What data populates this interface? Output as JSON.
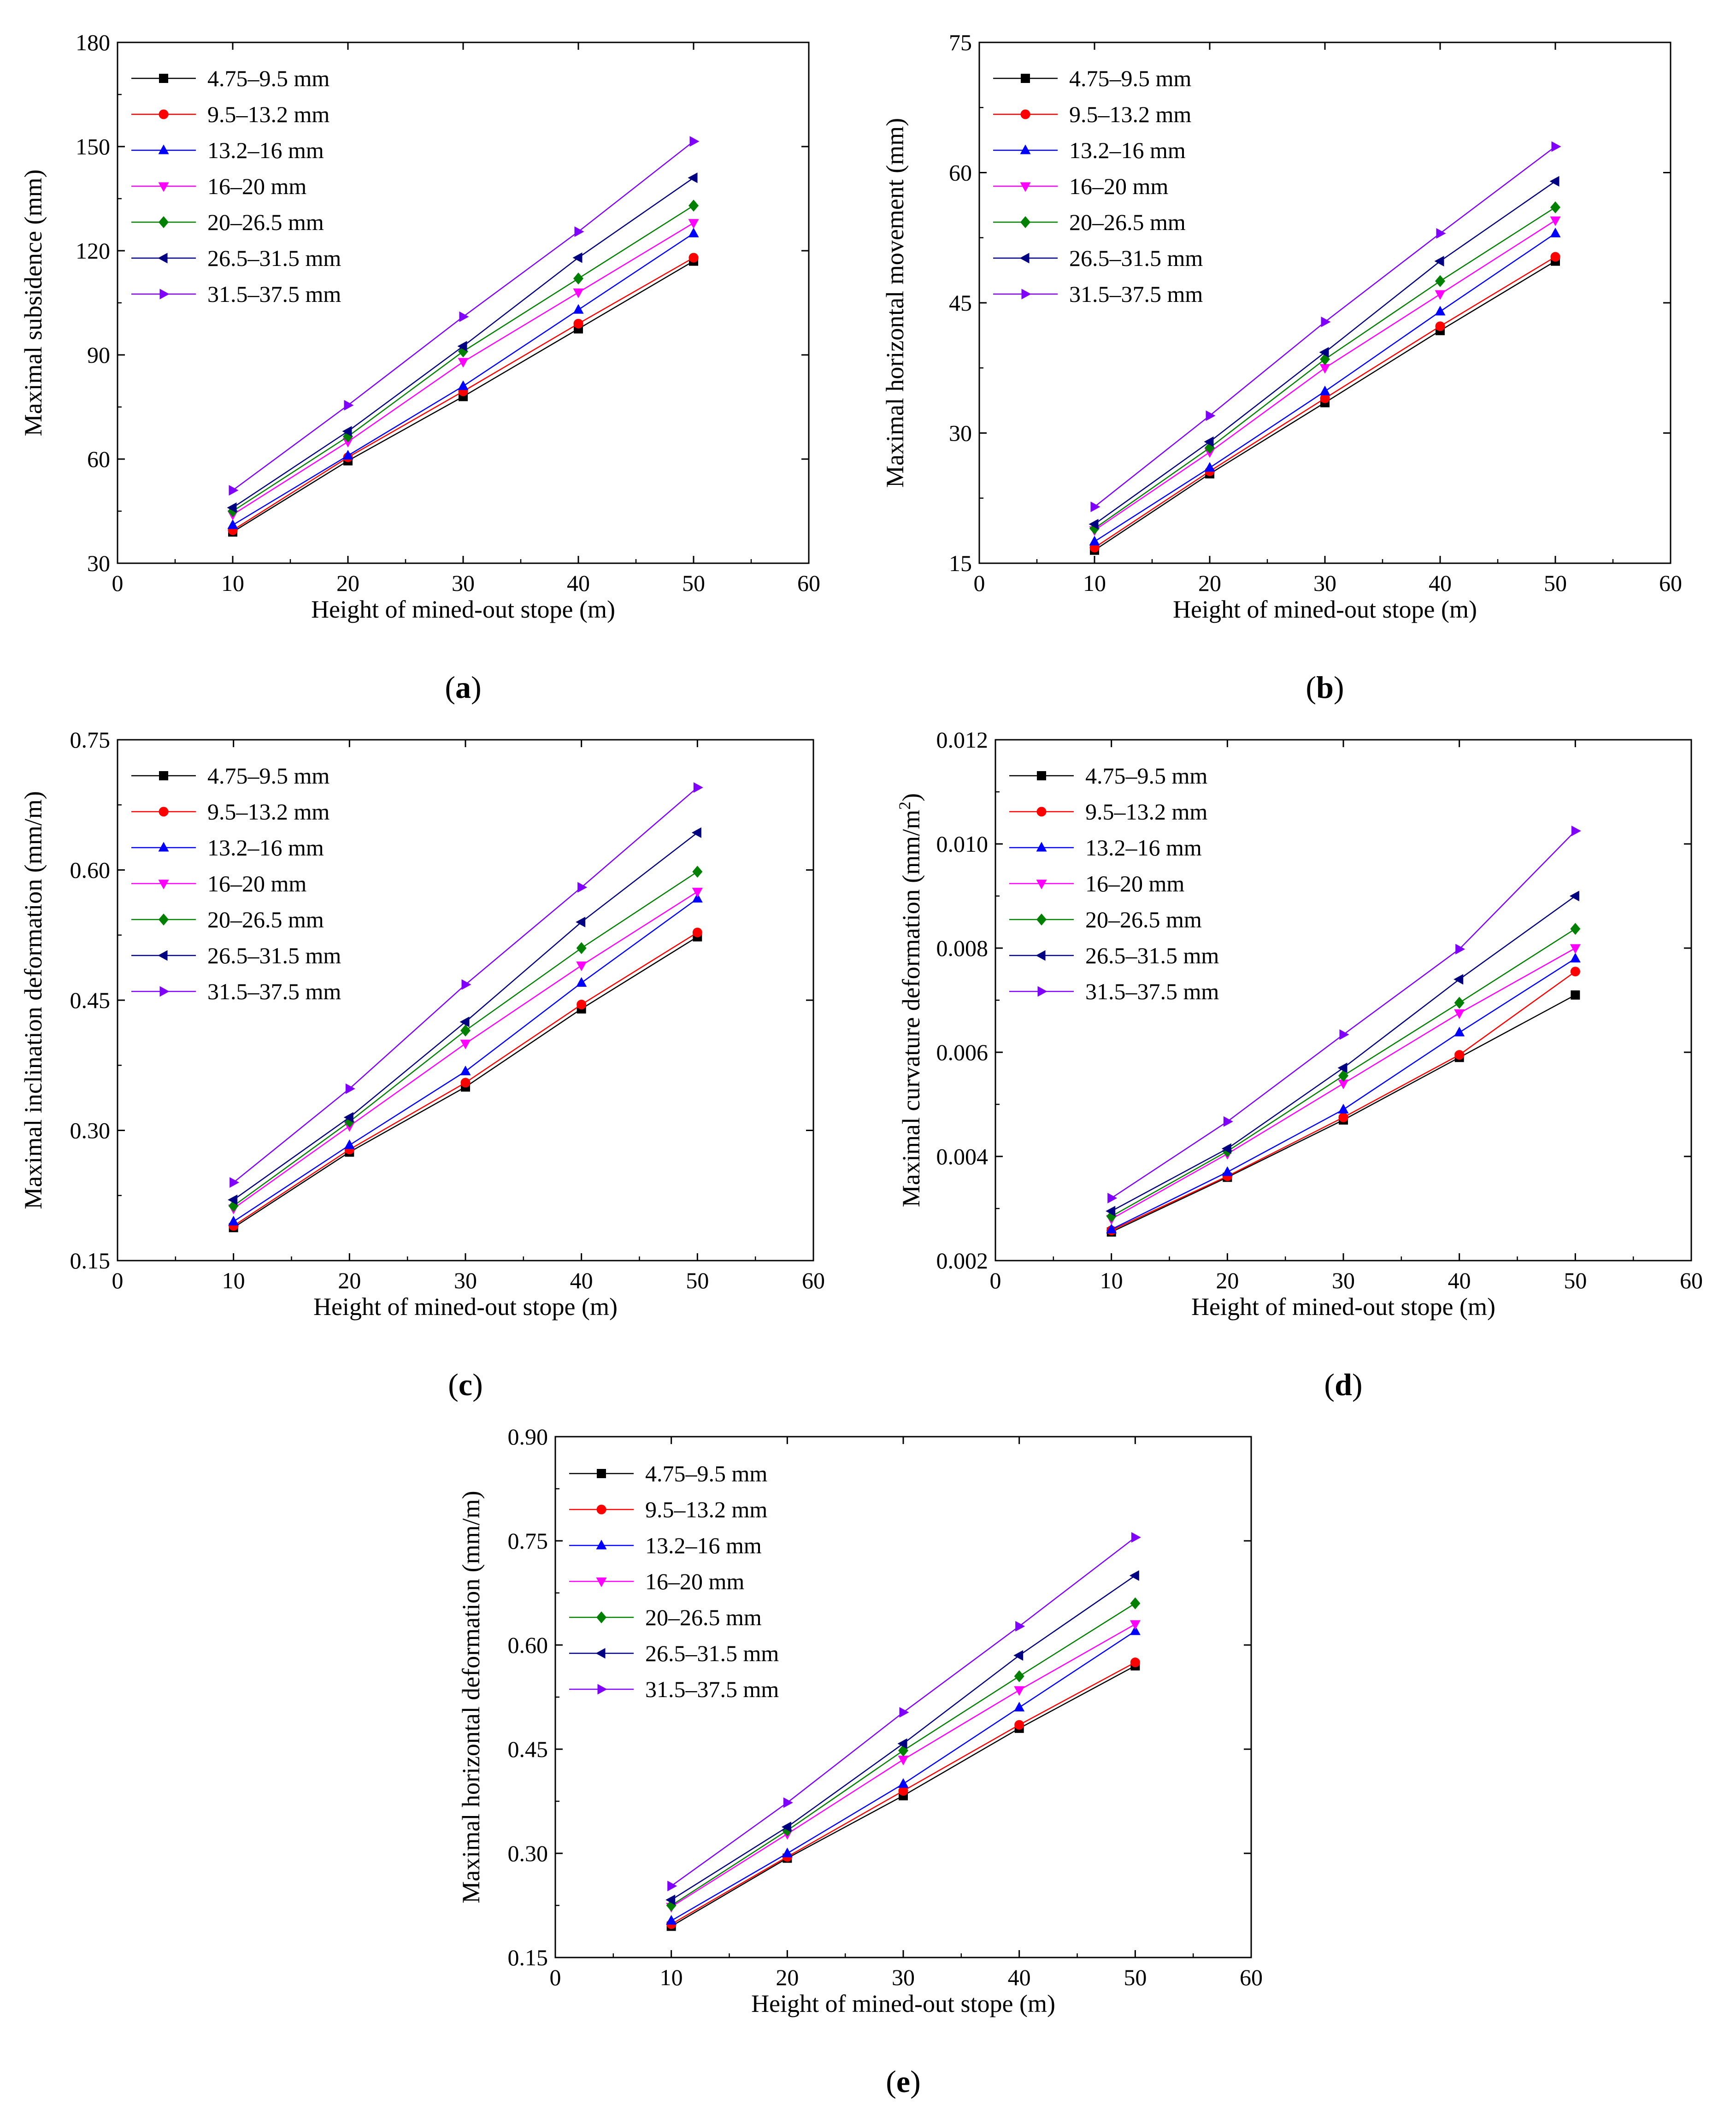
{
  "figure": {
    "series_names": [
      "4.75–9.5 mm",
      "9.5–13.2 mm",
      "13.2–16 mm",
      "16–20 mm",
      "20–26.5 mm",
      "26.5–31.5 mm",
      "31.5–37.5 mm"
    ],
    "series_colors": [
      "#000000",
      "#ff0000",
      "#0000ff",
      "#ff00ff",
      "#008000",
      "#000080",
      "#8000ff"
    ],
    "series_markers": [
      "square-icon",
      "circle-icon",
      "triangle-up-icon",
      "triangle-down-icon",
      "diamond-icon",
      "triangle-left-icon",
      "triangle-right-icon"
    ]
  },
  "chart_data": [
    {
      "panel_label": "(a)",
      "type": "line",
      "xlabel": "Height of mined-out stope (m)",
      "ylabel": "Maximal subsidence (mm)",
      "xlim": [
        0,
        60
      ],
      "ylim": [
        30,
        180
      ],
      "x_ticks": [
        0,
        10,
        20,
        30,
        40,
        50,
        60
      ],
      "x_tick_labels": [
        "0",
        "10",
        "20",
        "30",
        "40",
        "50",
        "60"
      ],
      "y_ticks": [
        30,
        60,
        90,
        120,
        150,
        180
      ],
      "y_tick_labels": [
        "30",
        "60",
        "90",
        "120",
        "150",
        "180"
      ],
      "legend_position": "top-left",
      "x": [
        10,
        20,
        30,
        40,
        50
      ],
      "series": [
        {
          "name": "4.75–9.5 mm",
          "values": [
            39,
            59.5,
            78,
            97.5,
            117
          ]
        },
        {
          "name": "9.5–13.2 mm",
          "values": [
            39.5,
            60.5,
            79.5,
            99,
            118
          ]
        },
        {
          "name": "13.2–16 mm",
          "values": [
            41,
            61,
            81,
            103,
            125
          ]
        },
        {
          "name": "16–20 mm",
          "values": [
            44,
            65,
            88,
            108,
            128
          ]
        },
        {
          "name": "20–26.5 mm",
          "values": [
            45,
            66.5,
            91,
            112,
            133
          ]
        },
        {
          "name": "26.5–31.5 mm",
          "values": [
            46,
            68,
            92.5,
            118,
            141
          ]
        },
        {
          "name": "31.5–37.5 mm",
          "values": [
            51,
            75.5,
            101,
            125.5,
            151.5
          ]
        }
      ]
    },
    {
      "panel_label": "(b)",
      "type": "line",
      "xlabel": "Height of mined-out stope (m)",
      "ylabel": "Maximal horizontal movement (mm)",
      "xlim": [
        0,
        60
      ],
      "ylim": [
        15,
        75
      ],
      "x_ticks": [
        0,
        10,
        20,
        30,
        40,
        50,
        60
      ],
      "x_tick_labels": [
        "0",
        "10",
        "20",
        "30",
        "40",
        "50",
        "60"
      ],
      "y_ticks": [
        15,
        30,
        45,
        60,
        75
      ],
      "y_tick_labels": [
        "15",
        "30",
        "45",
        "60",
        "75"
      ],
      "legend_position": "top-left",
      "x": [
        10,
        20,
        30,
        40,
        50
      ],
      "series": [
        {
          "name": "4.75–9.5 mm",
          "values": [
            16.5,
            25.3,
            33.5,
            41.8,
            49.8
          ]
        },
        {
          "name": "9.5–13.2 mm",
          "values": [
            16.8,
            25.6,
            34,
            42.3,
            50.3
          ]
        },
        {
          "name": "13.2–16 mm",
          "values": [
            17.5,
            26,
            34.8,
            44,
            53
          ]
        },
        {
          "name": "16–20 mm",
          "values": [
            18.8,
            27.8,
            37.5,
            46,
            54.5
          ]
        },
        {
          "name": "20–26.5 mm",
          "values": [
            19,
            28.3,
            38.5,
            47.5,
            56
          ]
        },
        {
          "name": "26.5–31.5 mm",
          "values": [
            19.5,
            29,
            39.3,
            49.8,
            59
          ]
        },
        {
          "name": "31.5–37.5 mm",
          "values": [
            21.5,
            32,
            42.8,
            53,
            63
          ]
        }
      ]
    },
    {
      "panel_label": "(c)",
      "type": "line",
      "xlabel": "Height of mined-out stope (m)",
      "ylabel": "Maximal inclination deformation (mm/m)",
      "xlim": [
        0,
        60
      ],
      "ylim": [
        0.15,
        0.75
      ],
      "x_ticks": [
        0,
        10,
        20,
        30,
        40,
        50,
        60
      ],
      "x_tick_labels": [
        "0",
        "10",
        "20",
        "30",
        "40",
        "50",
        "60"
      ],
      "y_ticks": [
        0.15,
        0.3,
        0.45,
        0.6,
        0.75
      ],
      "y_tick_labels": [
        "0.15",
        "0.30",
        "0.45",
        "0.60",
        "0.75"
      ],
      "legend_position": "top-left",
      "x": [
        10,
        20,
        30,
        40,
        50
      ],
      "series": [
        {
          "name": "4.75–9.5 mm",
          "values": [
            0.188,
            0.275,
            0.35,
            0.44,
            0.523
          ]
        },
        {
          "name": "9.5–13.2 mm",
          "values": [
            0.19,
            0.278,
            0.355,
            0.445,
            0.528
          ]
        },
        {
          "name": "13.2–16 mm",
          "values": [
            0.195,
            0.283,
            0.368,
            0.47,
            0.567
          ]
        },
        {
          "name": "16–20 mm",
          "values": [
            0.21,
            0.305,
            0.4,
            0.49,
            0.575
          ]
        },
        {
          "name": "20–26.5 mm",
          "values": [
            0.213,
            0.31,
            0.415,
            0.51,
            0.598
          ]
        },
        {
          "name": "26.5–31.5 mm",
          "values": [
            0.22,
            0.315,
            0.425,
            0.54,
            0.643
          ]
        },
        {
          "name": "31.5–37.5 mm",
          "values": [
            0.24,
            0.348,
            0.468,
            0.58,
            0.695
          ]
        }
      ]
    },
    {
      "panel_label": "(d)",
      "type": "line",
      "xlabel": "Height of mined-out stope (m)",
      "ylabel": "Maximal curvature deformation (mm/m",
      "ylabel_sup": "2",
      "ylabel_end": ")",
      "xlim": [
        0,
        60
      ],
      "ylim": [
        0.002,
        0.012
      ],
      "x_ticks": [
        0,
        10,
        20,
        30,
        40,
        50,
        60
      ],
      "x_tick_labels": [
        "0",
        "10",
        "20",
        "30",
        "40",
        "50",
        "60"
      ],
      "y_ticks": [
        0.002,
        0.004,
        0.006,
        0.008,
        0.01,
        0.012
      ],
      "y_tick_labels": [
        "0.002",
        "0.004",
        "0.006",
        "0.008",
        "0.010",
        "0.012"
      ],
      "legend_position": "top-left",
      "x": [
        10,
        20,
        30,
        40,
        50
      ],
      "series": [
        {
          "name": "4.75–9.5 mm",
          "values": [
            0.00255,
            0.0036,
            0.0047,
            0.0059,
            0.0071
          ]
        },
        {
          "name": "9.5–13.2 mm",
          "values": [
            0.00258,
            0.00362,
            0.00475,
            0.00595,
            0.00755
          ]
        },
        {
          "name": "13.2–16 mm",
          "values": [
            0.0026,
            0.0037,
            0.0049,
            0.00638,
            0.0078
          ]
        },
        {
          "name": "16–20 mm",
          "values": [
            0.0028,
            0.00405,
            0.0054,
            0.00675,
            0.008
          ]
        },
        {
          "name": "20–26.5 mm",
          "values": [
            0.00285,
            0.0041,
            0.00555,
            0.00695,
            0.00837
          ]
        },
        {
          "name": "26.5–31.5 mm",
          "values": [
            0.00295,
            0.00415,
            0.0057,
            0.0074,
            0.009
          ]
        },
        {
          "name": "31.5–37.5 mm",
          "values": [
            0.0032,
            0.00467,
            0.00634,
            0.00798,
            0.01025
          ]
        }
      ]
    },
    {
      "panel_label": "(e)",
      "type": "line",
      "xlabel": "Height of mined-out stope (m)",
      "ylabel": "Maximal horizontal deformation (mm/m)",
      "xlim": [
        0,
        60
      ],
      "ylim": [
        0.15,
        0.9
      ],
      "x_ticks": [
        0,
        10,
        20,
        30,
        40,
        50,
        60
      ],
      "x_tick_labels": [
        "0",
        "10",
        "20",
        "30",
        "40",
        "50",
        "60"
      ],
      "y_ticks": [
        0.15,
        0.3,
        0.45,
        0.6,
        0.75,
        0.9
      ],
      "y_tick_labels": [
        "0.15",
        "0.30",
        "0.45",
        "0.60",
        "0.75",
        "0.90"
      ],
      "legend_position": "top-left",
      "x": [
        10,
        20,
        30,
        40,
        50
      ],
      "series": [
        {
          "name": "4.75–9.5 mm",
          "values": [
            0.195,
            0.293,
            0.383,
            0.48,
            0.57
          ]
        },
        {
          "name": "9.5–13.2 mm",
          "values": [
            0.198,
            0.295,
            0.39,
            0.485,
            0.575
          ]
        },
        {
          "name": "13.2–16 mm",
          "values": [
            0.203,
            0.3,
            0.4,
            0.51,
            0.62
          ]
        },
        {
          "name": "16–20 mm",
          "values": [
            0.223,
            0.328,
            0.435,
            0.535,
            0.63
          ]
        },
        {
          "name": "20–26.5 mm",
          "values": [
            0.225,
            0.333,
            0.448,
            0.555,
            0.66
          ]
        },
        {
          "name": "26.5–31.5 mm",
          "values": [
            0.233,
            0.338,
            0.458,
            0.585,
            0.7
          ]
        },
        {
          "name": "31.5–37.5 mm",
          "values": [
            0.253,
            0.373,
            0.503,
            0.627,
            0.755
          ]
        }
      ]
    }
  ]
}
